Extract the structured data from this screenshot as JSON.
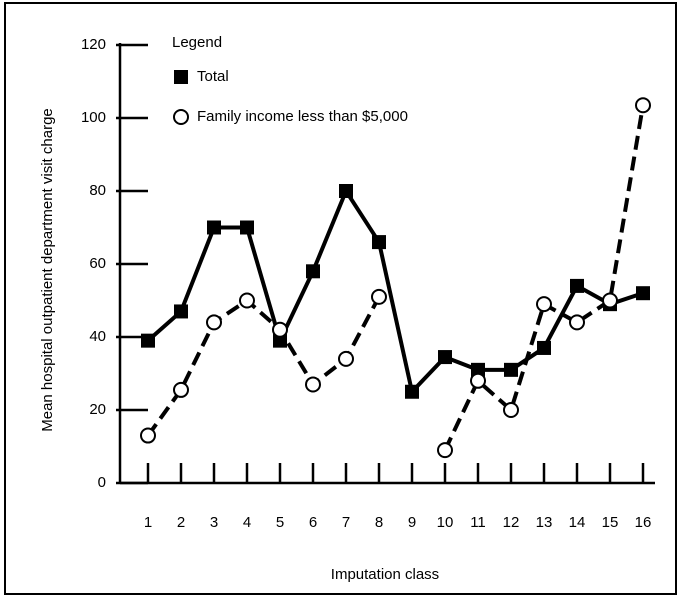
{
  "chart_data": {
    "type": "line",
    "y_label": "Mean hospital outpatient department visit charge",
    "x_label": "Imputation class",
    "legend_title": "Legend",
    "categories": [
      "1",
      "2",
      "3",
      "4",
      "5",
      "6",
      "7",
      "8",
      "9",
      "10",
      "11",
      "12",
      "13",
      "14",
      "15",
      "16"
    ],
    "series": [
      {
        "name": "Total",
        "color": "#000000",
        "marker": "square",
        "line_style": "solid",
        "values": [
          39,
          47,
          70,
          70,
          39,
          58,
          80,
          66,
          25,
          34.5,
          31,
          31,
          37,
          54,
          49,
          52
        ]
      },
      {
        "name": "Family income less than $5,000",
        "color": "#000000",
        "marker": "circle",
        "line_style": "dashed",
        "values": [
          13,
          25.5,
          44,
          50,
          42,
          27,
          34,
          51,
          null,
          9,
          28,
          20,
          49,
          44,
          50,
          103.5
        ]
      }
    ],
    "ylim": [
      0,
      120
    ],
    "yticks": [
      0,
      20,
      40,
      60,
      80,
      100,
      120
    ],
    "legend": "upper left"
  }
}
